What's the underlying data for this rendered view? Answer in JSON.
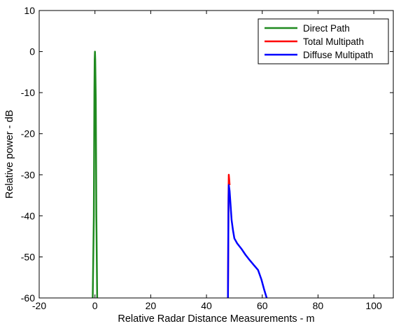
{
  "chart_data": {
    "type": "line",
    "title": "",
    "xlabel": "Relative Radar Distance Measurements - m",
    "ylabel": "Relative power - dB",
    "xlim": [
      -20,
      107
    ],
    "ylim": [
      -60,
      10
    ],
    "xticks": [
      -20,
      0,
      20,
      40,
      60,
      80,
      100
    ],
    "yticks": [
      10,
      0,
      -10,
      -20,
      -30,
      -40,
      -50,
      -60
    ],
    "grid": false,
    "legend_position": "top-right",
    "series": [
      {
        "name": "Direct Path",
        "color": "#1f8a1f",
        "x": [
          -0.8,
          -0.4,
          -0.2,
          -0.1,
          0.0,
          0.1,
          0.3,
          0.5,
          0.8
        ],
        "y": [
          -60,
          -40,
          -10,
          -2,
          0,
          -2,
          -12,
          -40,
          -60
        ]
      },
      {
        "name": "Total Multipath",
        "color": "#ff0000",
        "x": [
          47.7,
          47.8,
          47.9,
          48.0,
          48.3
        ],
        "y": [
          -60,
          -48,
          -35,
          -30,
          -32.5
        ]
      },
      {
        "name": "Diffuse Multipath",
        "color": "#0000ff",
        "x": [
          47.7,
          47.8,
          47.9,
          48.0,
          48.3,
          48.7,
          49.0,
          49.5,
          50.0,
          51.0,
          52.5,
          54.0,
          55.5,
          57.0,
          58.5,
          59.7,
          60.7,
          61.6
        ],
        "y": [
          -60,
          -48,
          -37,
          -32.5,
          -34,
          -38,
          -41,
          -43.5,
          -45.5,
          -46.7,
          -48,
          -49.5,
          -50.8,
          -52,
          -53.2,
          -55.5,
          -58,
          -60
        ]
      }
    ]
  }
}
